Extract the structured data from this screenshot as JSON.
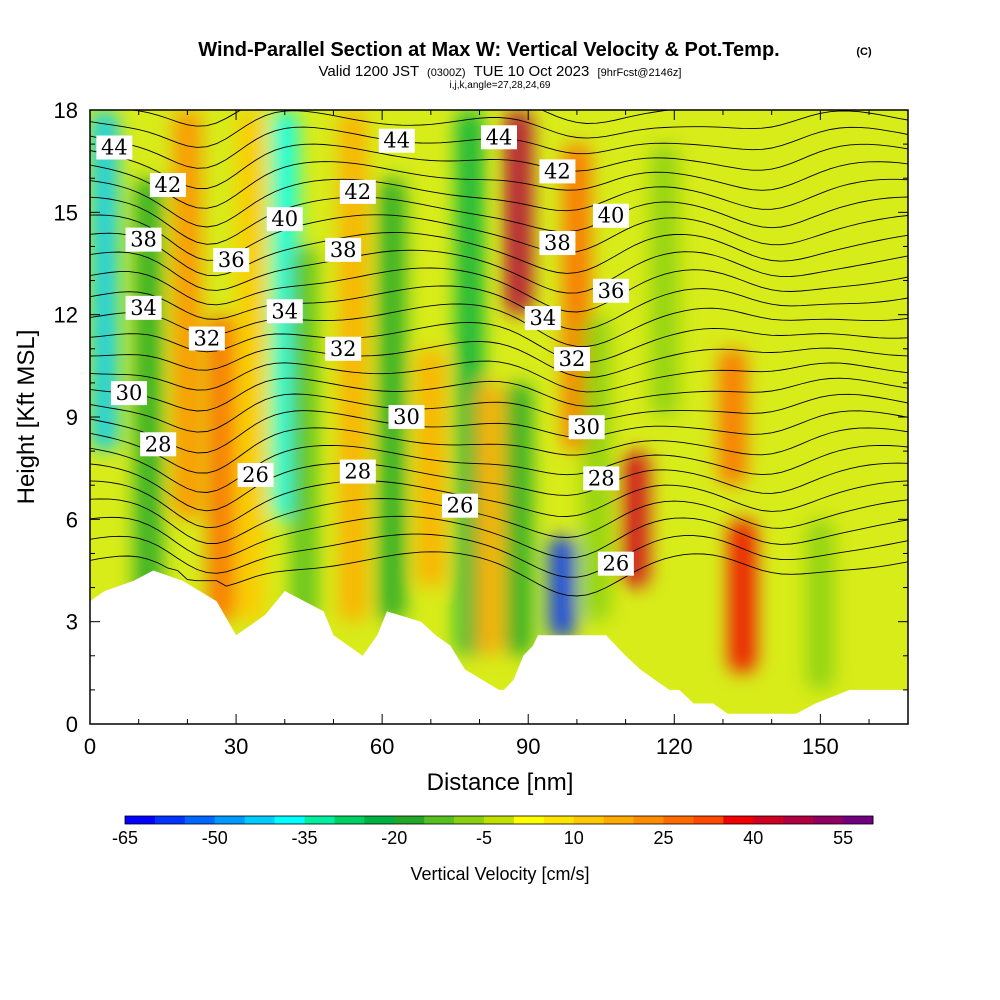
{
  "chart_data": {
    "type": "heatmap",
    "title": "Wind-Parallel Section at Max W: Vertical Velocity & Pot.Temp.",
    "title_mark": "(C)",
    "subtitle_main": "Valid 1200 JST",
    "subtitle_small": "(0300Z)",
    "subtitle_date": "TUE 10 Oct 2023",
    "subtitle_fcst": "[9hrFcst@2146z]",
    "subtitle_indices": "i,j,k,angle=27,28,24,69",
    "xlabel": "Distance [nm]",
    "ylabel": "Height [Kft MSL]",
    "xlim": [
      0,
      168
    ],
    "ylim": [
      0,
      18
    ],
    "x_ticks": [
      "0",
      "30",
      "60",
      "90",
      "120",
      "150"
    ],
    "x_tick_values": [
      0,
      30,
      60,
      90,
      120,
      150
    ],
    "y_ticks": [
      "0",
      "3",
      "6",
      "9",
      "12",
      "15",
      "18"
    ],
    "y_tick_values": [
      0,
      3,
      6,
      9,
      12,
      15,
      18
    ],
    "colorbar": {
      "label": "Vertical Velocity [cm/s]",
      "tick_labels": [
        "-65",
        "-50",
        "-35",
        "-20",
        "-5",
        "10",
        "25",
        "40",
        "55"
      ],
      "tick_values": [
        -65,
        -50,
        -35,
        -20,
        -5,
        10,
        25,
        40,
        55
      ],
      "bounds": [
        -65,
        -60,
        -55,
        -50,
        -45,
        -40,
        -35,
        -30,
        -25,
        -20,
        -15,
        -10,
        -5,
        0,
        5,
        10,
        15,
        20,
        25,
        30,
        35,
        40,
        45,
        50,
        55,
        60
      ],
      "colors": [
        "#0000ff",
        "#0033ff",
        "#0066ff",
        "#0099ff",
        "#00ccff",
        "#00ffff",
        "#00f0a0",
        "#00d060",
        "#00b040",
        "#22a828",
        "#55c020",
        "#88d010",
        "#c0e000",
        "#ffff00",
        "#ffe400",
        "#ffc800",
        "#ffaa00",
        "#ff8c00",
        "#ff6a00",
        "#ff4800",
        "#f00000",
        "#d00020",
        "#b00040",
        "#900060",
        "#700080"
      ]
    },
    "potential_temperature_contour_labels": [
      {
        "value": "44",
        "x": 5,
        "y": 16.9
      },
      {
        "value": "42",
        "x": 16,
        "y": 15.8
      },
      {
        "value": "38",
        "x": 11,
        "y": 14.2
      },
      {
        "value": "36",
        "x": 29,
        "y": 13.6
      },
      {
        "value": "34",
        "x": 11,
        "y": 12.2
      },
      {
        "value": "32",
        "x": 24,
        "y": 11.3
      },
      {
        "value": "30",
        "x": 8,
        "y": 9.7
      },
      {
        "value": "28",
        "x": 14,
        "y": 8.2
      },
      {
        "value": "40",
        "x": 40,
        "y": 14.8
      },
      {
        "value": "34",
        "x": 40,
        "y": 12.1
      },
      {
        "value": "26",
        "x": 34,
        "y": 7.3
      },
      {
        "value": "44",
        "x": 63,
        "y": 17.1
      },
      {
        "value": "42",
        "x": 55,
        "y": 15.6
      },
      {
        "value": "38",
        "x": 52,
        "y": 13.9
      },
      {
        "value": "32",
        "x": 52,
        "y": 11.0
      },
      {
        "value": "30",
        "x": 65,
        "y": 9.0
      },
      {
        "value": "28",
        "x": 55,
        "y": 7.4
      },
      {
        "value": "44",
        "x": 84,
        "y": 17.2
      },
      {
        "value": "26",
        "x": 76,
        "y": 6.4
      },
      {
        "value": "42",
        "x": 96,
        "y": 16.2
      },
      {
        "value": "38",
        "x": 96,
        "y": 14.1
      },
      {
        "value": "34",
        "x": 93,
        "y": 11.9
      },
      {
        "value": "32",
        "x": 99,
        "y": 10.7
      },
      {
        "value": "30",
        "x": 102,
        "y": 8.7
      },
      {
        "value": "28",
        "x": 105,
        "y": 7.2
      },
      {
        "value": "40",
        "x": 107,
        "y": 14.9
      },
      {
        "value": "36",
        "x": 107,
        "y": 12.7
      },
      {
        "value": "26",
        "x": 108,
        "y": 4.7
      }
    ],
    "velocity_features": [
      {
        "x": 3,
        "y0": 8,
        "y1": 18,
        "w": -45
      },
      {
        "x": 12,
        "y0": 3.5,
        "y1": 16,
        "w": -20
      },
      {
        "x": 20,
        "y0": 6,
        "y1": 18,
        "w": 20
      },
      {
        "x": 27,
        "y0": 3,
        "y1": 12,
        "w": 25
      },
      {
        "x": 33,
        "y0": 3,
        "y1": 18,
        "w": 10
      },
      {
        "x": 40,
        "y0": 6,
        "y1": 18,
        "w": -40
      },
      {
        "x": 44,
        "y0": 3,
        "y1": 14,
        "w": -15
      },
      {
        "x": 54,
        "y0": 3,
        "y1": 18,
        "w": 15
      },
      {
        "x": 62,
        "y0": 3,
        "y1": 16,
        "w": -20
      },
      {
        "x": 70,
        "y0": 4,
        "y1": 11,
        "w": 15
      },
      {
        "x": 78,
        "y0": 2,
        "y1": 18,
        "w": -25
      },
      {
        "x": 82,
        "y0": 2,
        "y1": 10,
        "w": 15
      },
      {
        "x": 88,
        "y0": 12,
        "y1": 18,
        "w": 45
      },
      {
        "x": 88,
        "y0": 2,
        "y1": 10,
        "w": -20
      },
      {
        "x": 97,
        "y0": 2.5,
        "y1": 5.5,
        "w": -60
      },
      {
        "x": 100,
        "y0": 8,
        "y1": 17,
        "w": 25
      },
      {
        "x": 104,
        "y0": 3,
        "y1": 12,
        "w": -10
      },
      {
        "x": 112,
        "y0": 4,
        "y1": 8,
        "w": 40
      },
      {
        "x": 118,
        "y0": 9,
        "y1": 17,
        "w": -10
      },
      {
        "x": 132,
        "y0": 7,
        "y1": 11,
        "w": 25
      },
      {
        "x": 134,
        "y0": 1.5,
        "y1": 6,
        "w": 35
      },
      {
        "x": 150,
        "y0": 1,
        "y1": 6,
        "w": -10
      }
    ],
    "terrain_top_kft": [
      [
        0,
        3.6
      ],
      [
        3,
        3.9
      ],
      [
        9,
        4.2
      ],
      [
        13,
        4.5
      ],
      [
        19,
        4.2
      ],
      [
        26,
        3.6
      ],
      [
        30,
        2.6
      ],
      [
        33,
        2.9
      ],
      [
        36,
        3.2
      ],
      [
        40,
        3.9
      ],
      [
        48,
        3.3
      ],
      [
        50,
        2.6
      ],
      [
        53,
        2.3
      ],
      [
        56,
        2.0
      ],
      [
        59,
        2.6
      ],
      [
        61,
        3.3
      ],
      [
        68,
        3.0
      ],
      [
        71,
        2.6
      ],
      [
        74,
        2.3
      ],
      [
        77,
        1.6
      ],
      [
        84,
        1.0
      ],
      [
        85,
        1.0
      ],
      [
        87,
        1.3
      ],
      [
        89,
        2.0
      ],
      [
        91,
        2.3
      ],
      [
        92,
        2.6
      ],
      [
        100,
        2.6
      ],
      [
        106,
        2.6
      ],
      [
        110,
        2.0
      ],
      [
        113,
        1.6
      ],
      [
        116,
        1.3
      ],
      [
        119,
        1.0
      ],
      [
        121,
        1.0
      ],
      [
        124,
        0.6
      ],
      [
        128,
        0.6
      ],
      [
        131,
        0.3
      ],
      [
        137,
        0.3
      ],
      [
        145,
        0.3
      ],
      [
        149,
        0.6
      ],
      [
        156,
        1.0
      ],
      [
        168,
        1.0
      ]
    ]
  }
}
